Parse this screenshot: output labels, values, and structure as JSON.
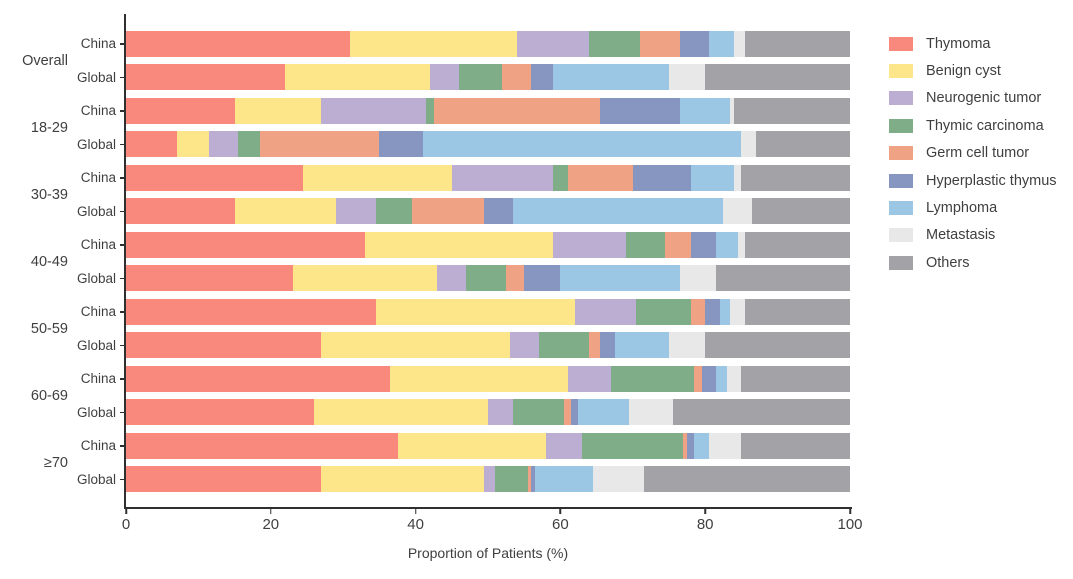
{
  "chart_data": {
    "type": "bar",
    "stacked": true,
    "orientation": "horizontal",
    "title": "",
    "xlabel": "Proportion of Patients (%)",
    "xlim": [
      0,
      100
    ],
    "xticks": [
      0,
      20,
      40,
      60,
      80,
      100
    ],
    "grid": false,
    "legend_position": "right",
    "groups": [
      "Overall",
      "18-29",
      "30-39",
      "40-49",
      "50-59",
      "60-69",
      "≥70"
    ],
    "series": [
      {
        "name": "Thymoma",
        "color": "#F8897C"
      },
      {
        "name": "Benign cyst",
        "color": "#FDE68A"
      },
      {
        "name": "Neurogenic tumor",
        "color": "#BCADD2"
      },
      {
        "name": "Thymic carcinoma",
        "color": "#7EAD88"
      },
      {
        "name": "Germ cell tumor",
        "color": "#F0A284"
      },
      {
        "name": "Hyperplastic thymus",
        "color": "#8795C1"
      },
      {
        "name": "Lymphoma",
        "color": "#9BC7E4"
      },
      {
        "name": "Metastasis",
        "color": "#E8E8E8"
      },
      {
        "name": "Others",
        "color": "#A3A2A7"
      }
    ],
    "rows": [
      {
        "group": "Overall",
        "region": "China",
        "values": [
          31,
          23,
          10,
          7,
          5.5,
          4,
          3.5,
          1.5,
          14.5
        ]
      },
      {
        "group": "Overall",
        "region": "Global",
        "values": [
          22,
          20,
          4,
          6,
          4,
          3,
          16,
          5,
          20
        ]
      },
      {
        "group": "18-29",
        "region": "China",
        "values": [
          15,
          12,
          14.5,
          1,
          23,
          11,
          7,
          0.5,
          16
        ]
      },
      {
        "group": "18-29",
        "region": "Global",
        "values": [
          7,
          4.5,
          4,
          3,
          16.5,
          6,
          44,
          2,
          13
        ]
      },
      {
        "group": "30-39",
        "region": "China",
        "values": [
          24.5,
          20.5,
          14,
          2,
          9,
          8,
          6,
          1,
          15
        ]
      },
      {
        "group": "30-39",
        "region": "Global",
        "values": [
          15,
          14,
          5.5,
          5,
          10,
          4,
          29,
          4,
          13.5
        ]
      },
      {
        "group": "40-49",
        "region": "China",
        "values": [
          33,
          26,
          10,
          5.5,
          3.5,
          3.5,
          3,
          1,
          14.5
        ]
      },
      {
        "group": "40-49",
        "region": "Global",
        "values": [
          23,
          20,
          4,
          5.5,
          2.5,
          5,
          16.5,
          5,
          18.5
        ]
      },
      {
        "group": "50-59",
        "region": "China",
        "values": [
          34.5,
          27.5,
          8.5,
          7.5,
          2,
          2,
          1.5,
          2,
          14.5
        ]
      },
      {
        "group": "50-59",
        "region": "Global",
        "values": [
          27,
          26,
          4,
          7,
          1.5,
          2,
          7.5,
          5,
          20
        ]
      },
      {
        "group": "60-69",
        "region": "China",
        "values": [
          36.5,
          24.5,
          6,
          11.5,
          1,
          2,
          1.5,
          2,
          15
        ]
      },
      {
        "group": "60-69",
        "region": "Global",
        "values": [
          26,
          24,
          3.5,
          7,
          1,
          1,
          7,
          6,
          24.5
        ]
      },
      {
        "group": "≥70",
        "region": "China",
        "values": [
          37.5,
          20.5,
          5,
          14,
          0.5,
          1,
          2,
          4.5,
          15
        ]
      },
      {
        "group": "≥70",
        "region": "Global",
        "values": [
          27,
          22.5,
          1.5,
          4.5,
          0.5,
          0.5,
          8,
          7,
          28.5
        ]
      }
    ]
  },
  "colors": {
    "axis": "#2f2f2f",
    "text": "#3f3f3f",
    "background": "#ffffff"
  }
}
